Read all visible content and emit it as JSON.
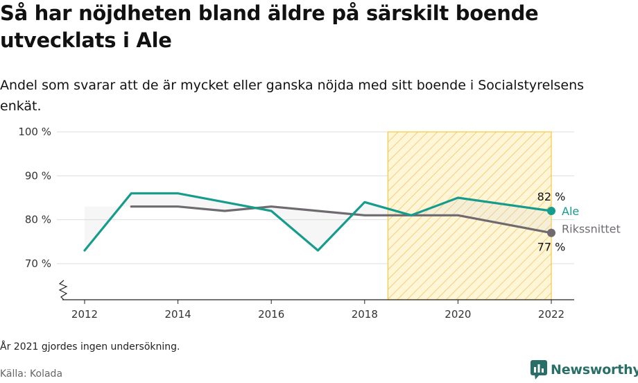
{
  "title": "Så har nöjdheten bland äldre på särskilt boende utvecklats i Ale",
  "subtitle": "Andel som svarar att de är mycket eller ganska nöjda med sitt boende i Socialstyrelsens enkät.",
  "footnote": "År 2021 gjordes ingen undersökning.",
  "source": "Källa: Kolada",
  "brand": "Newsworthy",
  "colors": {
    "ale": "#169c8d",
    "riks": "#6e6a6f",
    "highlight": "#f5c842",
    "brand": "#2a6e68"
  },
  "chart_data": {
    "type": "line",
    "x": [
      2012,
      2013,
      2014,
      2015,
      2016,
      2017,
      2018,
      2019,
      2020,
      2022
    ],
    "x_ticks": [
      "2012",
      "2014",
      "2016",
      "2018",
      "2020",
      "2022"
    ],
    "y_ticks": [
      "70 %",
      "80 %",
      "90 %",
      "100 %"
    ],
    "ylim": [
      70,
      100
    ],
    "axis_break": true,
    "highlight_range": [
      2018.5,
      2022
    ],
    "series": [
      {
        "name": "Ale",
        "color": "#169c8d",
        "values": [
          73,
          86,
          86,
          84,
          82,
          73,
          84,
          81,
          85,
          82
        ],
        "end_label": "82 %"
      },
      {
        "name": "Rikssnittet",
        "color": "#6e6a6f",
        "values": [
          null,
          83,
          83,
          82,
          83,
          82,
          81,
          81,
          81,
          77
        ],
        "end_label": "77 %"
      }
    ]
  }
}
